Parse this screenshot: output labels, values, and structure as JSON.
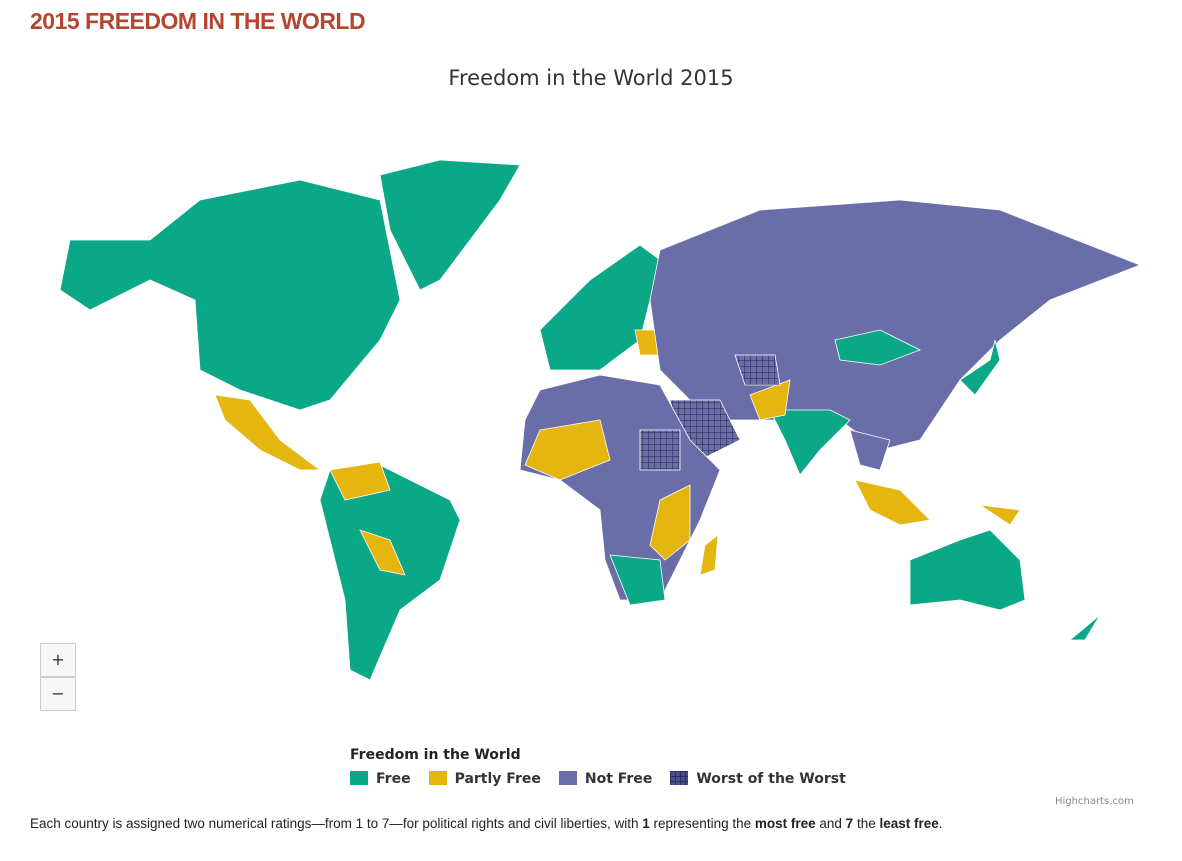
{
  "header": {
    "title": "2015 FREEDOM IN THE WORLD"
  },
  "map": {
    "title": "Freedom in the World 2015",
    "zoom": {
      "in": "+",
      "out": "−"
    },
    "legend": {
      "title": "Freedom in the World",
      "items": [
        {
          "name": "Free",
          "color": "#0aa886"
        },
        {
          "name": "Partly Free",
          "color": "#e4b60f"
        },
        {
          "name": "Not Free",
          "color": "#6a6ea8"
        },
        {
          "name": "Worst of the Worst",
          "color": "#4b4e8c"
        }
      ]
    },
    "credit": "Highcharts.com"
  },
  "footnote": {
    "parts": [
      "Each country is assigned two numerical ratings—from 1 to 7—for political rights and civil liberties, with ",
      "1",
      " representing the ",
      "most free",
      " and ",
      "7",
      " the ",
      "least free",
      "."
    ]
  }
}
